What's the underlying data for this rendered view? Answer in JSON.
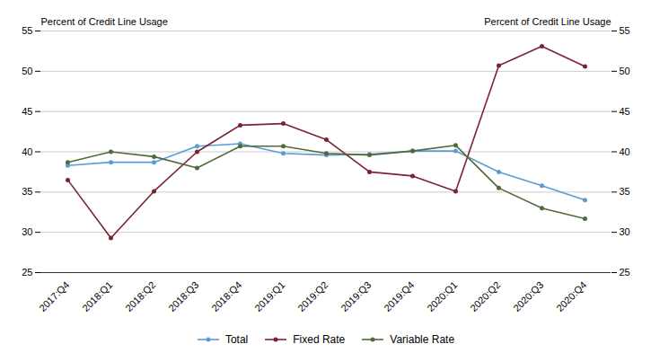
{
  "chart_data": {
    "type": "line",
    "categories": [
      "2017:Q4",
      "2018:Q1",
      "2018:Q2",
      "2018:Q3",
      "2018:Q4",
      "2019:Q1",
      "2019:Q2",
      "2019:Q3",
      "2019:Q4",
      "2020:Q1",
      "2020:Q2",
      "2020:Q3",
      "2020:Q4"
    ],
    "series": [
      {
        "name": "Total",
        "color": "#5b9bd5",
        "marker": "circle",
        "values": [
          38.3,
          38.7,
          38.7,
          40.7,
          41.0,
          39.8,
          39.6,
          39.7,
          40.1,
          40.1,
          37.5,
          35.8,
          34.0
        ]
      },
      {
        "name": "Fixed Rate",
        "color": "#7b2333",
        "marker": "circle",
        "values": [
          36.5,
          29.3,
          35.1,
          40.0,
          43.3,
          43.5,
          41.5,
          37.5,
          37.0,
          35.1,
          50.7,
          53.1,
          50.6
        ]
      },
      {
        "name": "Variable Rate",
        "color": "#4e6b3a",
        "marker": "circle",
        "values": [
          38.7,
          40.0,
          39.4,
          38.0,
          40.7,
          40.7,
          39.8,
          39.6,
          40.1,
          40.8,
          35.5,
          33.0,
          31.7
        ]
      }
    ],
    "ylim": [
      25,
      55
    ],
    "yticks": [
      25,
      30,
      35,
      40,
      45,
      50,
      55
    ],
    "ylabel": "Percent of Credit Line Usage",
    "y2lim": [
      25,
      55
    ],
    "y2ticks": [
      25,
      30,
      35,
      40,
      45,
      50,
      55
    ],
    "y2label": "Percent of Credit Line Usage",
    "grid": true,
    "legend": "bottom"
  }
}
